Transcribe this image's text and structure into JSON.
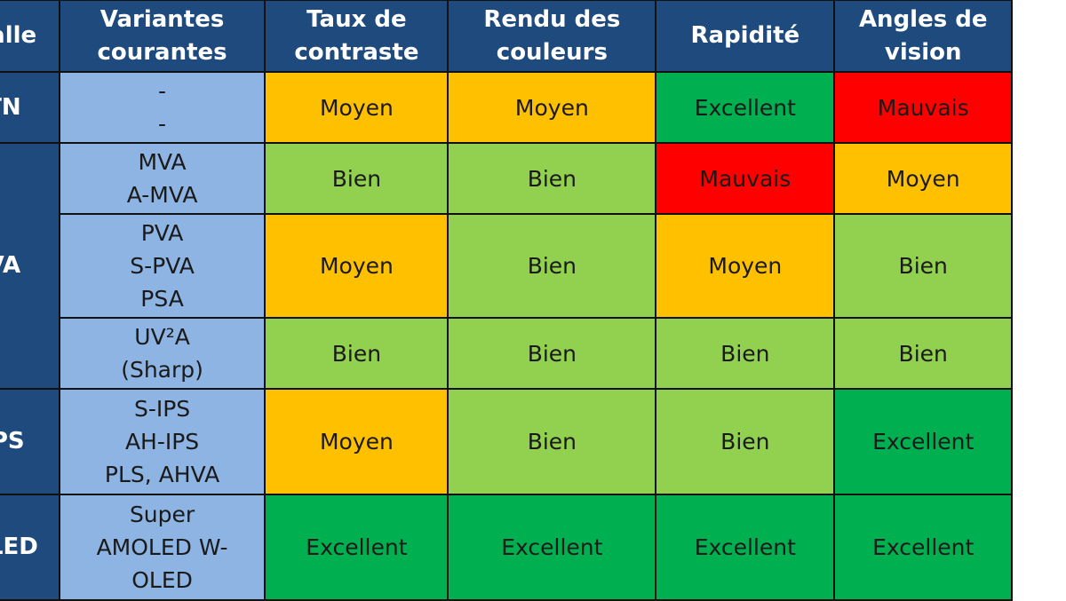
{
  "header": {
    "technology": "Dalle",
    "variants": [
      "Variantes",
      "courantes"
    ],
    "contrast": [
      "Taux de",
      "contraste"
    ],
    "colors": [
      "Rendu des",
      "couleurs"
    ],
    "speed": [
      "Rapidité"
    ],
    "angles": [
      "Angles de",
      "vision"
    ]
  },
  "level_colors": {
    "Moyen": "#ffc000",
    "Bien": "#92d050",
    "Excellent": "#00b050",
    "Mauvais": "#ff0000"
  },
  "rows": [
    {
      "technology": "TN",
      "variants": [
        "-",
        "-"
      ],
      "contrast": "Moyen",
      "colors": "Moyen",
      "speed": "Excellent",
      "angles": "Mauvais"
    },
    {
      "technology": "VA",
      "variants": [
        "MVA",
        "A-MVA"
      ],
      "contrast": "Bien",
      "colors": "Bien",
      "speed": "Mauvais",
      "angles": "Moyen"
    },
    {
      "variants": [
        "PVA",
        "S-PVA",
        "PSA"
      ],
      "contrast": "Moyen",
      "colors": "Bien",
      "speed": "Moyen",
      "angles": "Bien"
    },
    {
      "variants": [
        "UV²A",
        "(Sharp)"
      ],
      "contrast": "Bien",
      "colors": "Bien",
      "speed": "Bien",
      "angles": "Bien"
    },
    {
      "technology": "IPS",
      "variants": [
        "S-IPS",
        "AH-IPS",
        "PLS, AHVA"
      ],
      "contrast": "Moyen",
      "colors": "Bien",
      "speed": "Bien",
      "angles": "Excellent"
    },
    {
      "technology": "OLED",
      "variants": [
        "Super",
        "AMOLED  W-",
        "OLED"
      ],
      "contrast": "Excellent",
      "colors": "Excellent",
      "speed": "Excellent",
      "angles": "Excellent"
    }
  ]
}
